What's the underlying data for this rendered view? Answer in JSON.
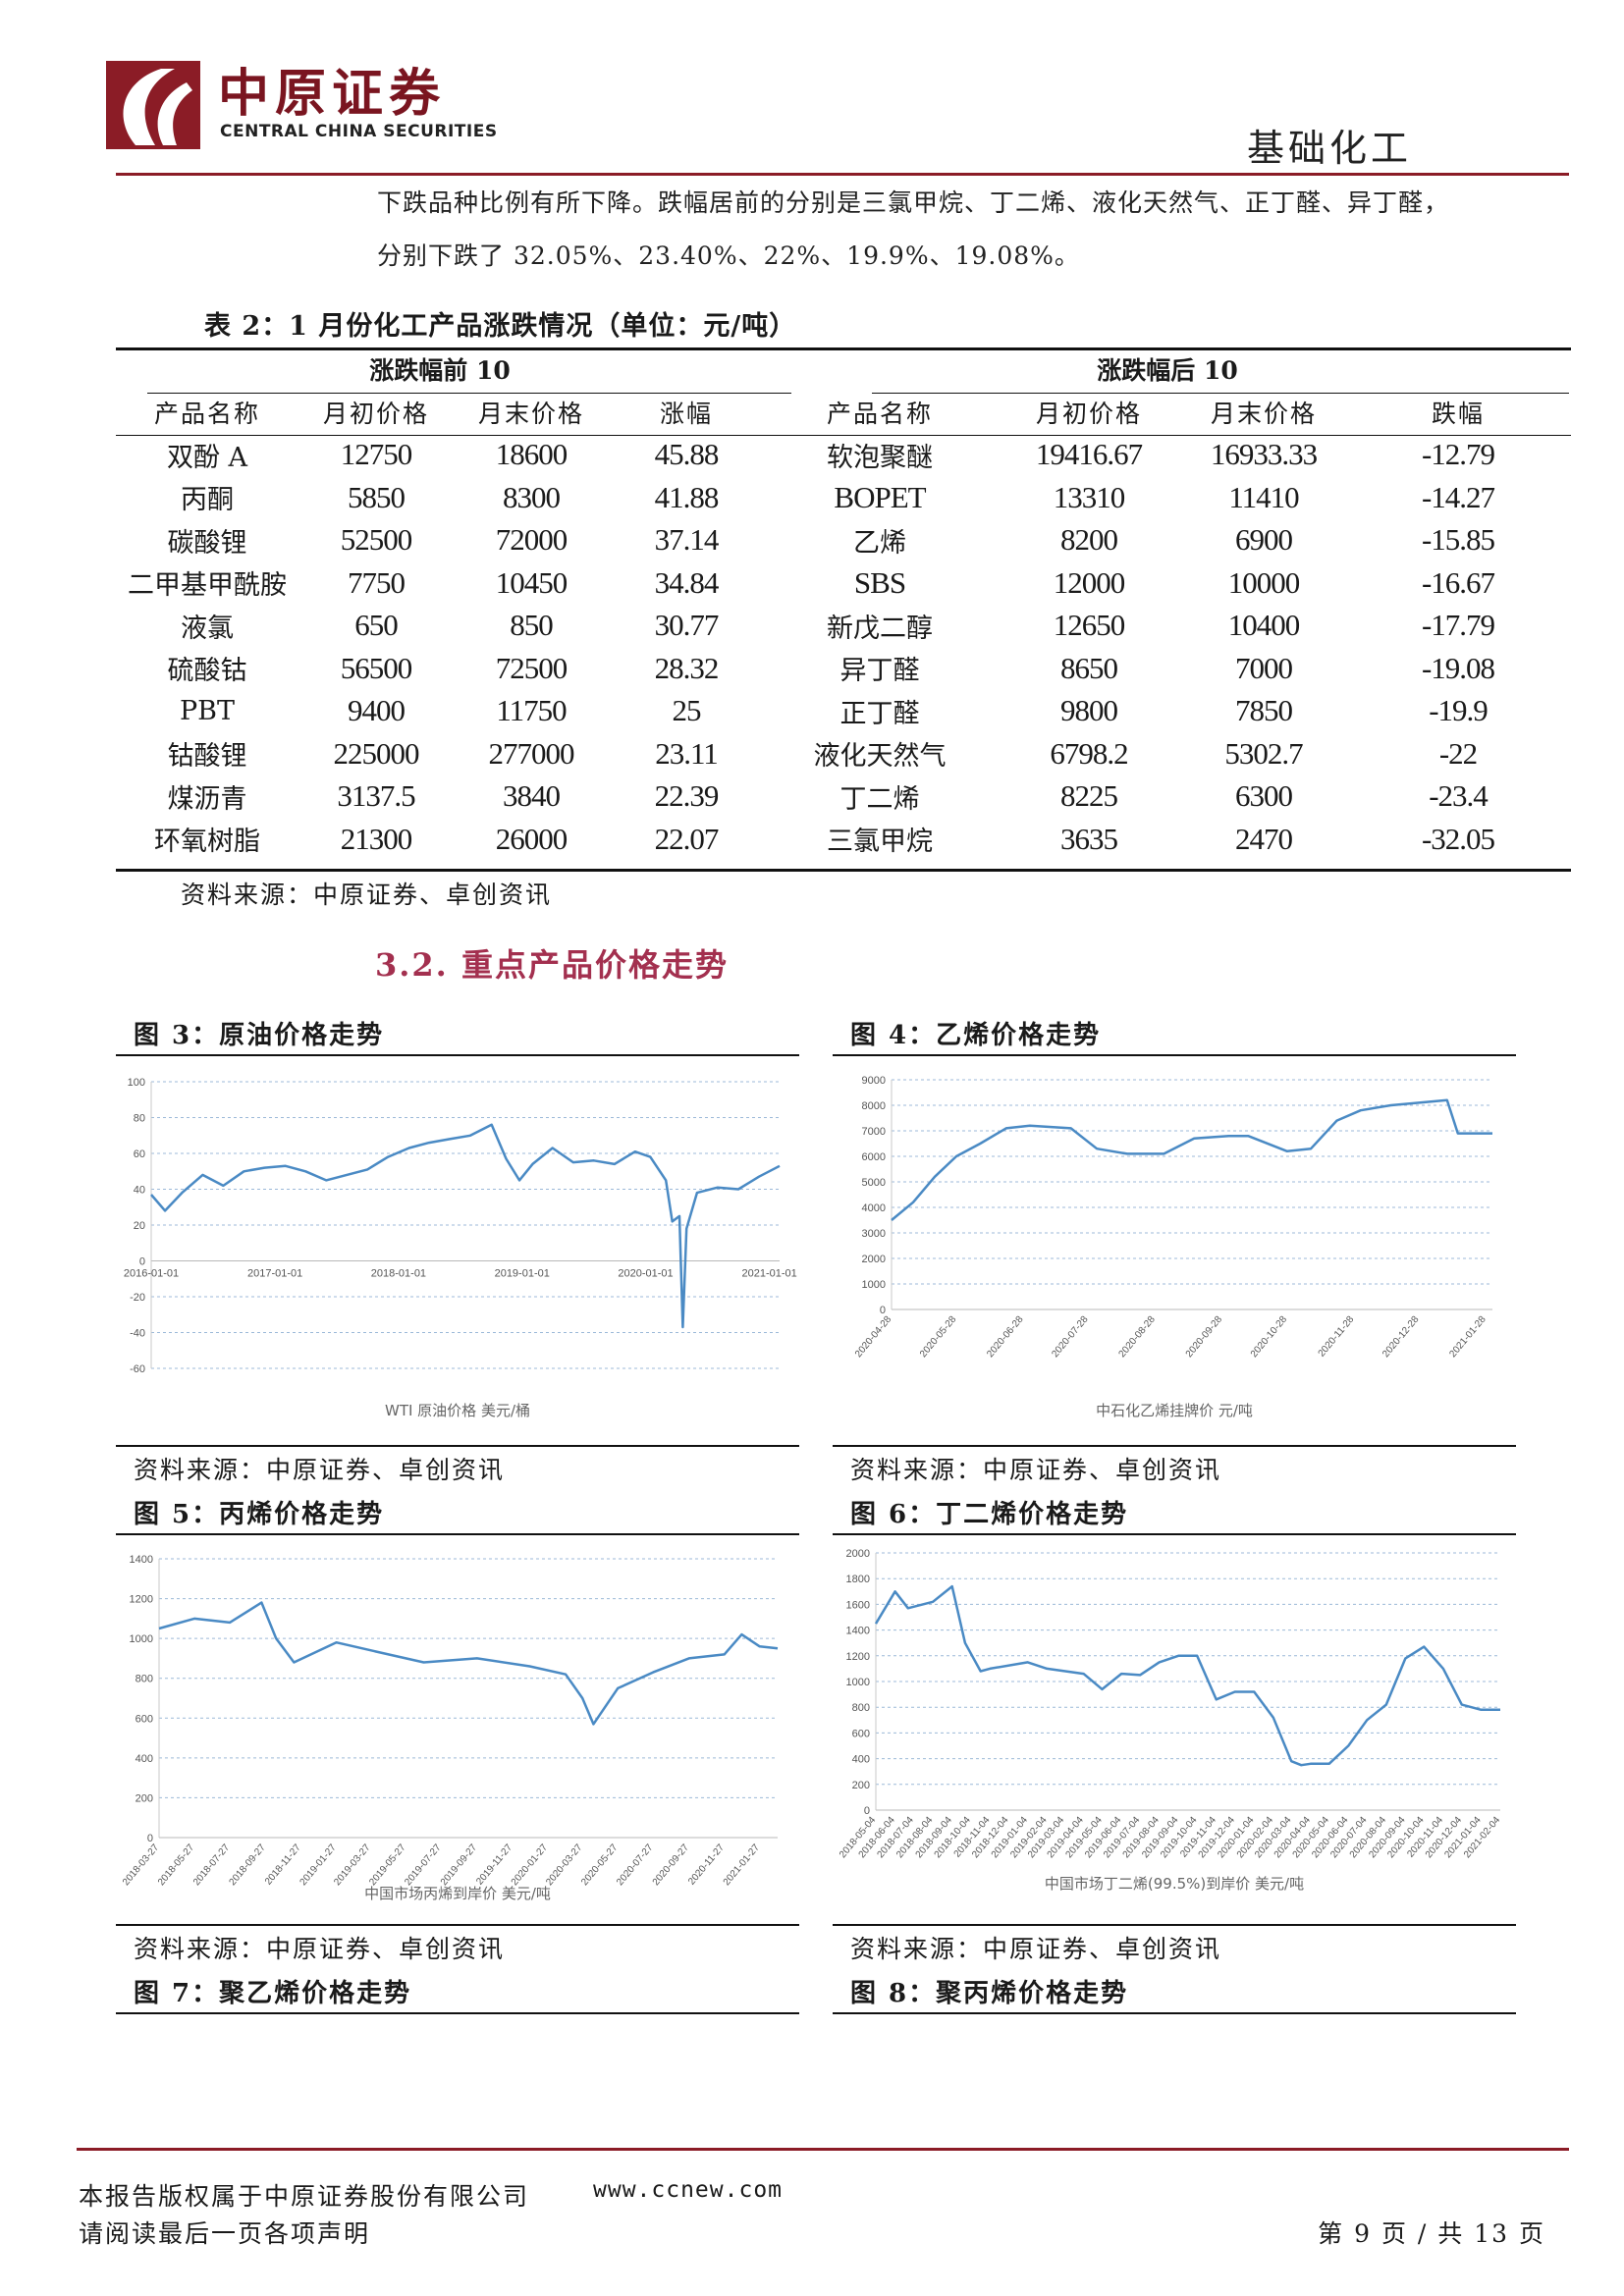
{
  "header": {
    "logo_cn": "中原证券",
    "logo_en": "CENTRAL CHINA SECURITIES",
    "industry": "基础化工",
    "colors": {
      "brand": "#8b1c26"
    }
  },
  "intro": {
    "line1": "下跌品种比例有所下降。跌幅居前的分别是三氯甲烷、丁二烯、液化天然气、正丁醛、异丁醛，",
    "line2": "分别下跌了 32.05%、23.40%、22%、19.9%、19.08%。"
  },
  "table": {
    "title": "表 2：1 月份化工产品涨跌情况（单位：元/吨）",
    "group_left": "涨跌幅前 10",
    "group_right": "涨跌幅后 10",
    "headers_left": [
      "产品名称",
      "月初价格",
      "月末价格",
      "涨幅"
    ],
    "headers_right": [
      "产品名称",
      "月初价格",
      "月末价格",
      "跌幅"
    ],
    "rows": [
      [
        "双酚 A",
        "12750",
        "18600",
        "45.88",
        "软泡聚醚",
        "19416.67",
        "16933.33",
        "-12.79"
      ],
      [
        "丙酮",
        "5850",
        "8300",
        "41.88",
        "BOPET",
        "13310",
        "11410",
        "-14.27"
      ],
      [
        "碳酸锂",
        "52500",
        "72000",
        "37.14",
        "乙烯",
        "8200",
        "6900",
        "-15.85"
      ],
      [
        "二甲基甲酰胺",
        "7750",
        "10450",
        "34.84",
        "SBS",
        "12000",
        "10000",
        "-16.67"
      ],
      [
        "液氯",
        "650",
        "850",
        "30.77",
        "新戊二醇",
        "12650",
        "10400",
        "-17.79"
      ],
      [
        "硫酸钴",
        "56500",
        "72500",
        "28.32",
        "异丁醛",
        "8650",
        "7000",
        "-19.08"
      ],
      [
        "PBT",
        "9400",
        "11750",
        "25",
        "正丁醛",
        "9800",
        "7850",
        "-19.9"
      ],
      [
        "钴酸锂",
        "225000",
        "277000",
        "23.11",
        "液化天然气",
        "6798.2",
        "5302.7",
        "-22"
      ],
      [
        "煤沥青",
        "3137.5",
        "3840",
        "22.39",
        "丁二烯",
        "8225",
        "6300",
        "-23.4"
      ],
      [
        "环氧树脂",
        "21300",
        "26000",
        "22.07",
        "三氯甲烷",
        "3635",
        "2470",
        "-32.05"
      ]
    ],
    "source": "资料来源：中原证券、卓创资讯"
  },
  "section_title": "3.2. 重点产品价格走势",
  "figures": {
    "fig3": {
      "title": "图 3：原油价格走势",
      "source": "资料来源：中原证券、卓创资讯"
    },
    "fig4": {
      "title": "图 4：乙烯价格走势",
      "source": "资料来源：中原证券、卓创资讯"
    },
    "fig5": {
      "title": "图 5：丙烯价格走势",
      "source": "资料来源：中原证券、卓创资讯"
    },
    "fig6": {
      "title": "图 6：丁二烯价格走势",
      "source": "资料来源：中原证券、卓创资讯"
    },
    "fig7": {
      "title": "图 7：聚乙烯价格走势"
    },
    "fig8": {
      "title": "图 8：聚丙烯价格走势"
    }
  },
  "chart_data": [
    {
      "id": "wti",
      "type": "line",
      "xlabel": "WTI 原油价格 美元/桶",
      "x_ticks": [
        "2016-01-01",
        "2017-01-01",
        "2018-01-01",
        "2019-01-01",
        "2020-01-01",
        "2021-01-01"
      ],
      "ylim": [
        -60,
        100
      ],
      "y_ticks": [
        100,
        80,
        60,
        40,
        20,
        0,
        -20,
        -40,
        -60
      ],
      "grid": true,
      "color": "#4a8ac4",
      "x": [
        "2016-01-01",
        "2016-02-11",
        "2016-04-01",
        "2016-06-01",
        "2016-08-01",
        "2016-10-01",
        "2016-12-01",
        "2017-02-01",
        "2017-04-01",
        "2017-06-01",
        "2017-08-01",
        "2017-10-01",
        "2017-12-01",
        "2018-02-01",
        "2018-04-01",
        "2018-06-01",
        "2018-08-01",
        "2018-10-03",
        "2018-11-15",
        "2018-12-24",
        "2019-02-01",
        "2019-04-01",
        "2019-06-01",
        "2019-08-01",
        "2019-10-01",
        "2019-12-01",
        "2020-01-15",
        "2020-03-01",
        "2020-03-20",
        "2020-04-10",
        "2020-04-20",
        "2020-05-01",
        "2020-06-01",
        "2020-08-01",
        "2020-10-01",
        "2020-12-01",
        "2021-01-31"
      ],
      "values": [
        37,
        28,
        38,
        48,
        42,
        50,
        52,
        53,
        50,
        45,
        48,
        51,
        58,
        63,
        66,
        68,
        70,
        76,
        57,
        45,
        54,
        63,
        55,
        56,
        54,
        61,
        58,
        45,
        22,
        25,
        -37,
        18,
        38,
        41,
        40,
        47,
        53
      ]
    },
    {
      "id": "ethylene",
      "type": "line",
      "xlabel": "中石化乙烯挂牌价 元/吨",
      "x_ticks": [
        "2020-04-28",
        "2020-05-28",
        "2020-06-28",
        "2020-07-28",
        "2020-08-28",
        "2020-09-28",
        "2020-10-28",
        "2020-11-28",
        "2020-12-28",
        "2021-01-28"
      ],
      "ylim": [
        0,
        9000
      ],
      "y_ticks": [
        9000,
        8000,
        7000,
        6000,
        5000,
        4000,
        3000,
        2000,
        1000,
        0
      ],
      "grid": true,
      "color": "#4a8ac4",
      "x": [
        "2020-04-28",
        "2020-05-08",
        "2020-05-18",
        "2020-05-28",
        "2020-06-08",
        "2020-06-20",
        "2020-07-01",
        "2020-07-20",
        "2020-08-01",
        "2020-08-15",
        "2020-09-01",
        "2020-09-15",
        "2020-10-01",
        "2020-10-10",
        "2020-10-28",
        "2020-11-08",
        "2020-11-20",
        "2020-12-01",
        "2020-12-15",
        "2021-01-10",
        "2021-01-15",
        "2021-01-31"
      ],
      "values": [
        3500,
        4200,
        5200,
        6000,
        6500,
        7100,
        7200,
        7100,
        6300,
        6100,
        6100,
        6700,
        6800,
        6800,
        6200,
        6300,
        7400,
        7800,
        8000,
        8200,
        6900,
        6900
      ]
    },
    {
      "id": "propylene",
      "type": "line",
      "xlabel": "中国市场丙烯到岸价 美元/吨",
      "x_ticks": [
        "2018-03-27",
        "2018-05-27",
        "2018-07-27",
        "2018-09-27",
        "2018-11-27",
        "2019-01-27",
        "2019-03-27",
        "2019-05-27",
        "2019-07-27",
        "2019-09-27",
        "2019-11-27",
        "2020-01-27",
        "2020-03-27",
        "2020-05-27",
        "2020-07-27",
        "2020-09-27",
        "2020-11-27",
        "2021-01-27"
      ],
      "ylim": [
        0,
        1400
      ],
      "y_ticks": [
        1400,
        1200,
        1000,
        800,
        600,
        400,
        200,
        0
      ],
      "grid": true,
      "color": "#4a8ac4",
      "x": [
        "2018-03-27",
        "2018-05-27",
        "2018-07-27",
        "2018-09-20",
        "2018-10-15",
        "2018-11-15",
        "2019-01-27",
        "2019-04-27",
        "2019-06-27",
        "2019-09-27",
        "2019-12-27",
        "2020-02-27",
        "2020-03-27",
        "2020-04-15",
        "2020-05-27",
        "2020-07-27",
        "2020-09-27",
        "2020-11-27",
        "2020-12-27",
        "2021-01-27",
        "2021-02-27"
      ],
      "values": [
        1050,
        1100,
        1080,
        1180,
        1000,
        880,
        980,
        920,
        880,
        900,
        860,
        820,
        700,
        570,
        750,
        830,
        900,
        920,
        1020,
        960,
        950
      ]
    },
    {
      "id": "butadiene",
      "type": "line",
      "xlabel": "中国市场丁二烯(99.5%)到岸价 美元/吨",
      "x_ticks": [
        "2018-05-04",
        "2018-06-04",
        "2018-07-04",
        "2018-08-04",
        "2018-09-04",
        "2018-10-04",
        "2018-11-04",
        "2018-12-04",
        "2019-01-04",
        "2019-02-04",
        "2019-03-04",
        "2019-04-04",
        "2019-05-04",
        "2019-06-04",
        "2019-07-04",
        "2019-08-04",
        "2019-09-04",
        "2019-10-04",
        "2019-11-04",
        "2019-12-04",
        "2020-01-04",
        "2020-02-04",
        "2020-03-04",
        "2020-04-04",
        "2020-05-04",
        "2020-06-04",
        "2020-07-04",
        "2020-08-04",
        "2020-09-04",
        "2020-10-04",
        "2020-11-04",
        "2020-12-04",
        "2021-01-04",
        "2021-02-04"
      ],
      "ylim": [
        0,
        2000
      ],
      "y_ticks": [
        2000,
        1800,
        1600,
        1400,
        1200,
        1000,
        800,
        600,
        400,
        200,
        0
      ],
      "grid": true,
      "color": "#4a8ac4",
      "x": [
        "2018-05-04",
        "2018-06-04",
        "2018-06-25",
        "2018-08-04",
        "2018-09-04",
        "2018-09-25",
        "2018-10-20",
        "2018-11-04",
        "2019-01-04",
        "2019-02-04",
        "2019-04-04",
        "2019-05-04",
        "2019-06-04",
        "2019-07-04",
        "2019-08-04",
        "2019-09-04",
        "2019-10-04",
        "2019-11-04",
        "2019-12-04",
        "2020-01-04",
        "2020-02-04",
        "2020-03-04",
        "2020-03-20",
        "2020-04-04",
        "2020-05-04",
        "2020-06-04",
        "2020-07-04",
        "2020-08-04",
        "2020-09-04",
        "2020-10-04",
        "2020-11-04",
        "2020-12-04",
        "2021-01-04",
        "2021-02-04"
      ],
      "values": [
        1450,
        1700,
        1570,
        1620,
        1740,
        1300,
        1080,
        1100,
        1150,
        1100,
        1060,
        940,
        1060,
        1050,
        1150,
        1200,
        1200,
        860,
        920,
        920,
        720,
        380,
        350,
        360,
        360,
        500,
        700,
        820,
        1180,
        1270,
        1100,
        820,
        780,
        780
      ]
    }
  ],
  "footer": {
    "copyright": "本报告版权属于中原证券股份有限公司",
    "url": "www.ccnew.com",
    "disclaimer": "请阅读最后一页各项声明",
    "page": "第 9 页 / 共 13 页"
  }
}
